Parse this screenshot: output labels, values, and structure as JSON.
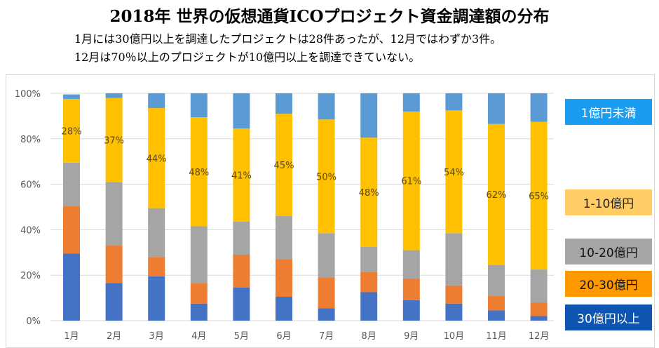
{
  "title": "2018年 世界の仮想通貨ICOプロジェクト資金調達額の分布",
  "subtitle_lines": [
    "1月には30億円以上を調達したプロジェクトは28件あったが、12月ではわずか3件。",
    "12月は70％以上のプロジェクトが10億円以上を調達できていない。"
  ],
  "chart_data": {
    "type": "bar",
    "stacked": "percent",
    "categories": [
      "1月",
      "2月",
      "3月",
      "4月",
      "5月",
      "6月",
      "7月",
      "8月",
      "9月",
      "10月",
      "11月",
      "12月"
    ],
    "ylim": [
      0,
      100
    ],
    "yticks": [
      "0%",
      "20%",
      "40%",
      "60%",
      "80%",
      "100%"
    ],
    "grid": true,
    "legend_position": "right",
    "series": [
      {
        "name": "30億円以上",
        "color": "#4472c4",
        "values": [
          29.5,
          16.5,
          19.5,
          7.5,
          14.5,
          10.5,
          5.5,
          12.5,
          9,
          7.5,
          4.5,
          2
        ]
      },
      {
        "name": "20-30億円",
        "color": "#ed7d31",
        "values": [
          21,
          16.5,
          8.5,
          9,
          14.5,
          16.5,
          13.5,
          9,
          9.5,
          8,
          6.5,
          6
        ]
      },
      {
        "name": "10-20億円",
        "color": "#a5a5a5",
        "values": [
          19,
          28,
          21.5,
          25,
          14.5,
          19,
          19.5,
          11,
          12.5,
          23,
          13.5,
          14.5
        ]
      },
      {
        "name": "1-10億円",
        "color": "#ffc000",
        "values": [
          28,
          37,
          44,
          48,
          41,
          45,
          50,
          48,
          61,
          54,
          62,
          65
        ],
        "labels": [
          "28%",
          "37%",
          "44%",
          "48%",
          "41%",
          "45%",
          "50%",
          "48%",
          "61%",
          "54%",
          "62%",
          "65%"
        ]
      },
      {
        "name": "1億円未満",
        "color": "#5b9bd5",
        "values": [
          2,
          2,
          6.5,
          10.5,
          15.5,
          9,
          11.5,
          19.5,
          8,
          7.5,
          13.5,
          12.5
        ]
      }
    ]
  },
  "legend": [
    {
      "label": "1億円未満",
      "bg": "#1a9cf0",
      "fg": "#ffffff"
    },
    {
      "label": "1-10億円",
      "bg": "#ffcc66",
      "fg": "#222222"
    },
    {
      "label": "10-20億円",
      "bg": "#a6a6a6",
      "fg": "#111111"
    },
    {
      "label": "20-30億円",
      "bg": "#ff9900",
      "fg": "#111111"
    },
    {
      "label": "30億円以上",
      "bg": "#0d55b0",
      "fg": "#ffffff"
    }
  ]
}
